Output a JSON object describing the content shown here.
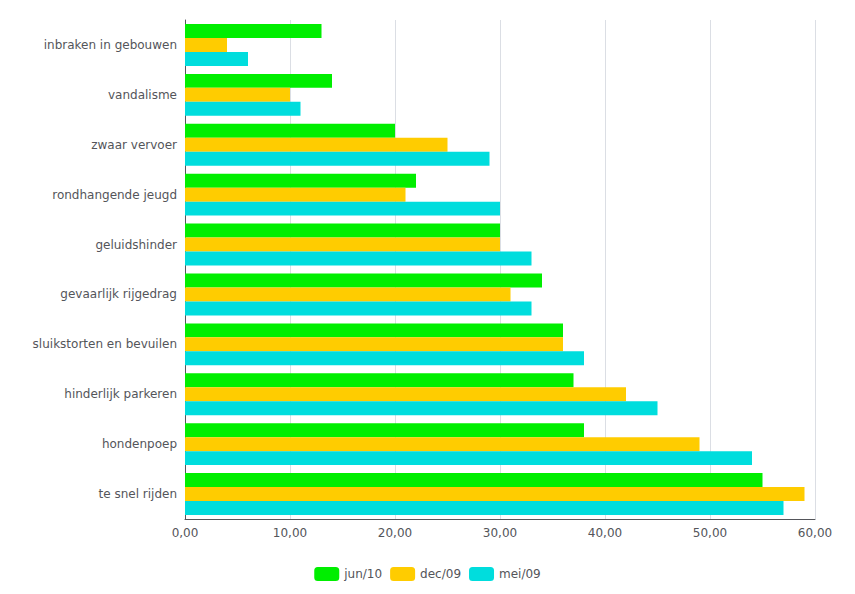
{
  "chart_data": {
    "type": "bar",
    "orientation": "horizontal",
    "categories": [
      "te snel rijden",
      "hondenpoep",
      "hinderlijk parkeren",
      "sluikstorten en bevuilen",
      "gevaarlijk rijgedrag",
      "geluidshinder",
      "rondhangende jeugd",
      "zwaar vervoer",
      "vandalisme",
      "inbraken in gebouwen"
    ],
    "series": [
      {
        "name": "jun/10",
        "color": "#00EE00",
        "values": [
          55,
          38,
          37,
          36,
          34,
          30,
          22,
          20,
          14,
          13
        ]
      },
      {
        "name": "dec/09",
        "color": "#FFCC00",
        "values": [
          59,
          49,
          42,
          36,
          31,
          30,
          21,
          25,
          10,
          4
        ]
      },
      {
        "name": "mei/09",
        "color": "#00DDDD",
        "values": [
          57,
          54,
          45,
          38,
          33,
          33,
          30,
          29,
          11,
          6
        ]
      }
    ],
    "xlim": [
      0,
      60
    ],
    "xticks": [
      {
        "value": 0,
        "label": "0,00"
      },
      {
        "value": 10,
        "label": "10,00"
      },
      {
        "value": 20,
        "label": "20,00"
      },
      {
        "value": 30,
        "label": "30,00"
      },
      {
        "value": 40,
        "label": "40,00"
      },
      {
        "value": 50,
        "label": "50,00"
      },
      {
        "value": 60,
        "label": "60,00"
      }
    ],
    "grid": true,
    "legend": "bottom"
  }
}
